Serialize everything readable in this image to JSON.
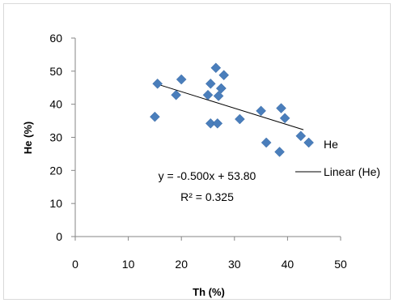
{
  "chart_data": {
    "type": "scatter",
    "title": "",
    "xlabel": "Th (%)",
    "ylabel": "He (%)",
    "xlim": [
      0,
      50
    ],
    "ylim": [
      0,
      60
    ],
    "x_ticks": [
      "0",
      "10",
      "20",
      "30",
      "40",
      "50"
    ],
    "y_ticks": [
      "0",
      "10",
      "20",
      "30",
      "40",
      "50",
      "60"
    ],
    "grid": false,
    "legend_position": "right",
    "series": [
      {
        "name": "He",
        "marker": "diamond",
        "color": "#4a7ebb",
        "x": [
          15.0,
          15.5,
          19.0,
          20.0,
          25.0,
          25.5,
          25.5,
          26.5,
          26.8,
          27.0,
          27.5,
          27.5,
          28.0,
          31.0,
          35.0,
          36.0,
          38.5,
          38.8,
          39.5,
          42.5,
          44.0
        ],
        "y": [
          36.2,
          46.2,
          42.8,
          47.5,
          42.8,
          46.2,
          34.2,
          51.0,
          34.2,
          42.5,
          44.8,
          44.8,
          48.8,
          35.5,
          38.0,
          28.4,
          25.6,
          38.8,
          35.8,
          30.4,
          28.4
        ]
      }
    ],
    "trendline": {
      "name": "Linear (He)",
      "color": "#000000",
      "slope": -0.5,
      "intercept": 53.8,
      "x_range": [
        15,
        43
      ],
      "equation": "y = -0.500x + 53.80",
      "r_squared": "R² = 0.325"
    }
  }
}
